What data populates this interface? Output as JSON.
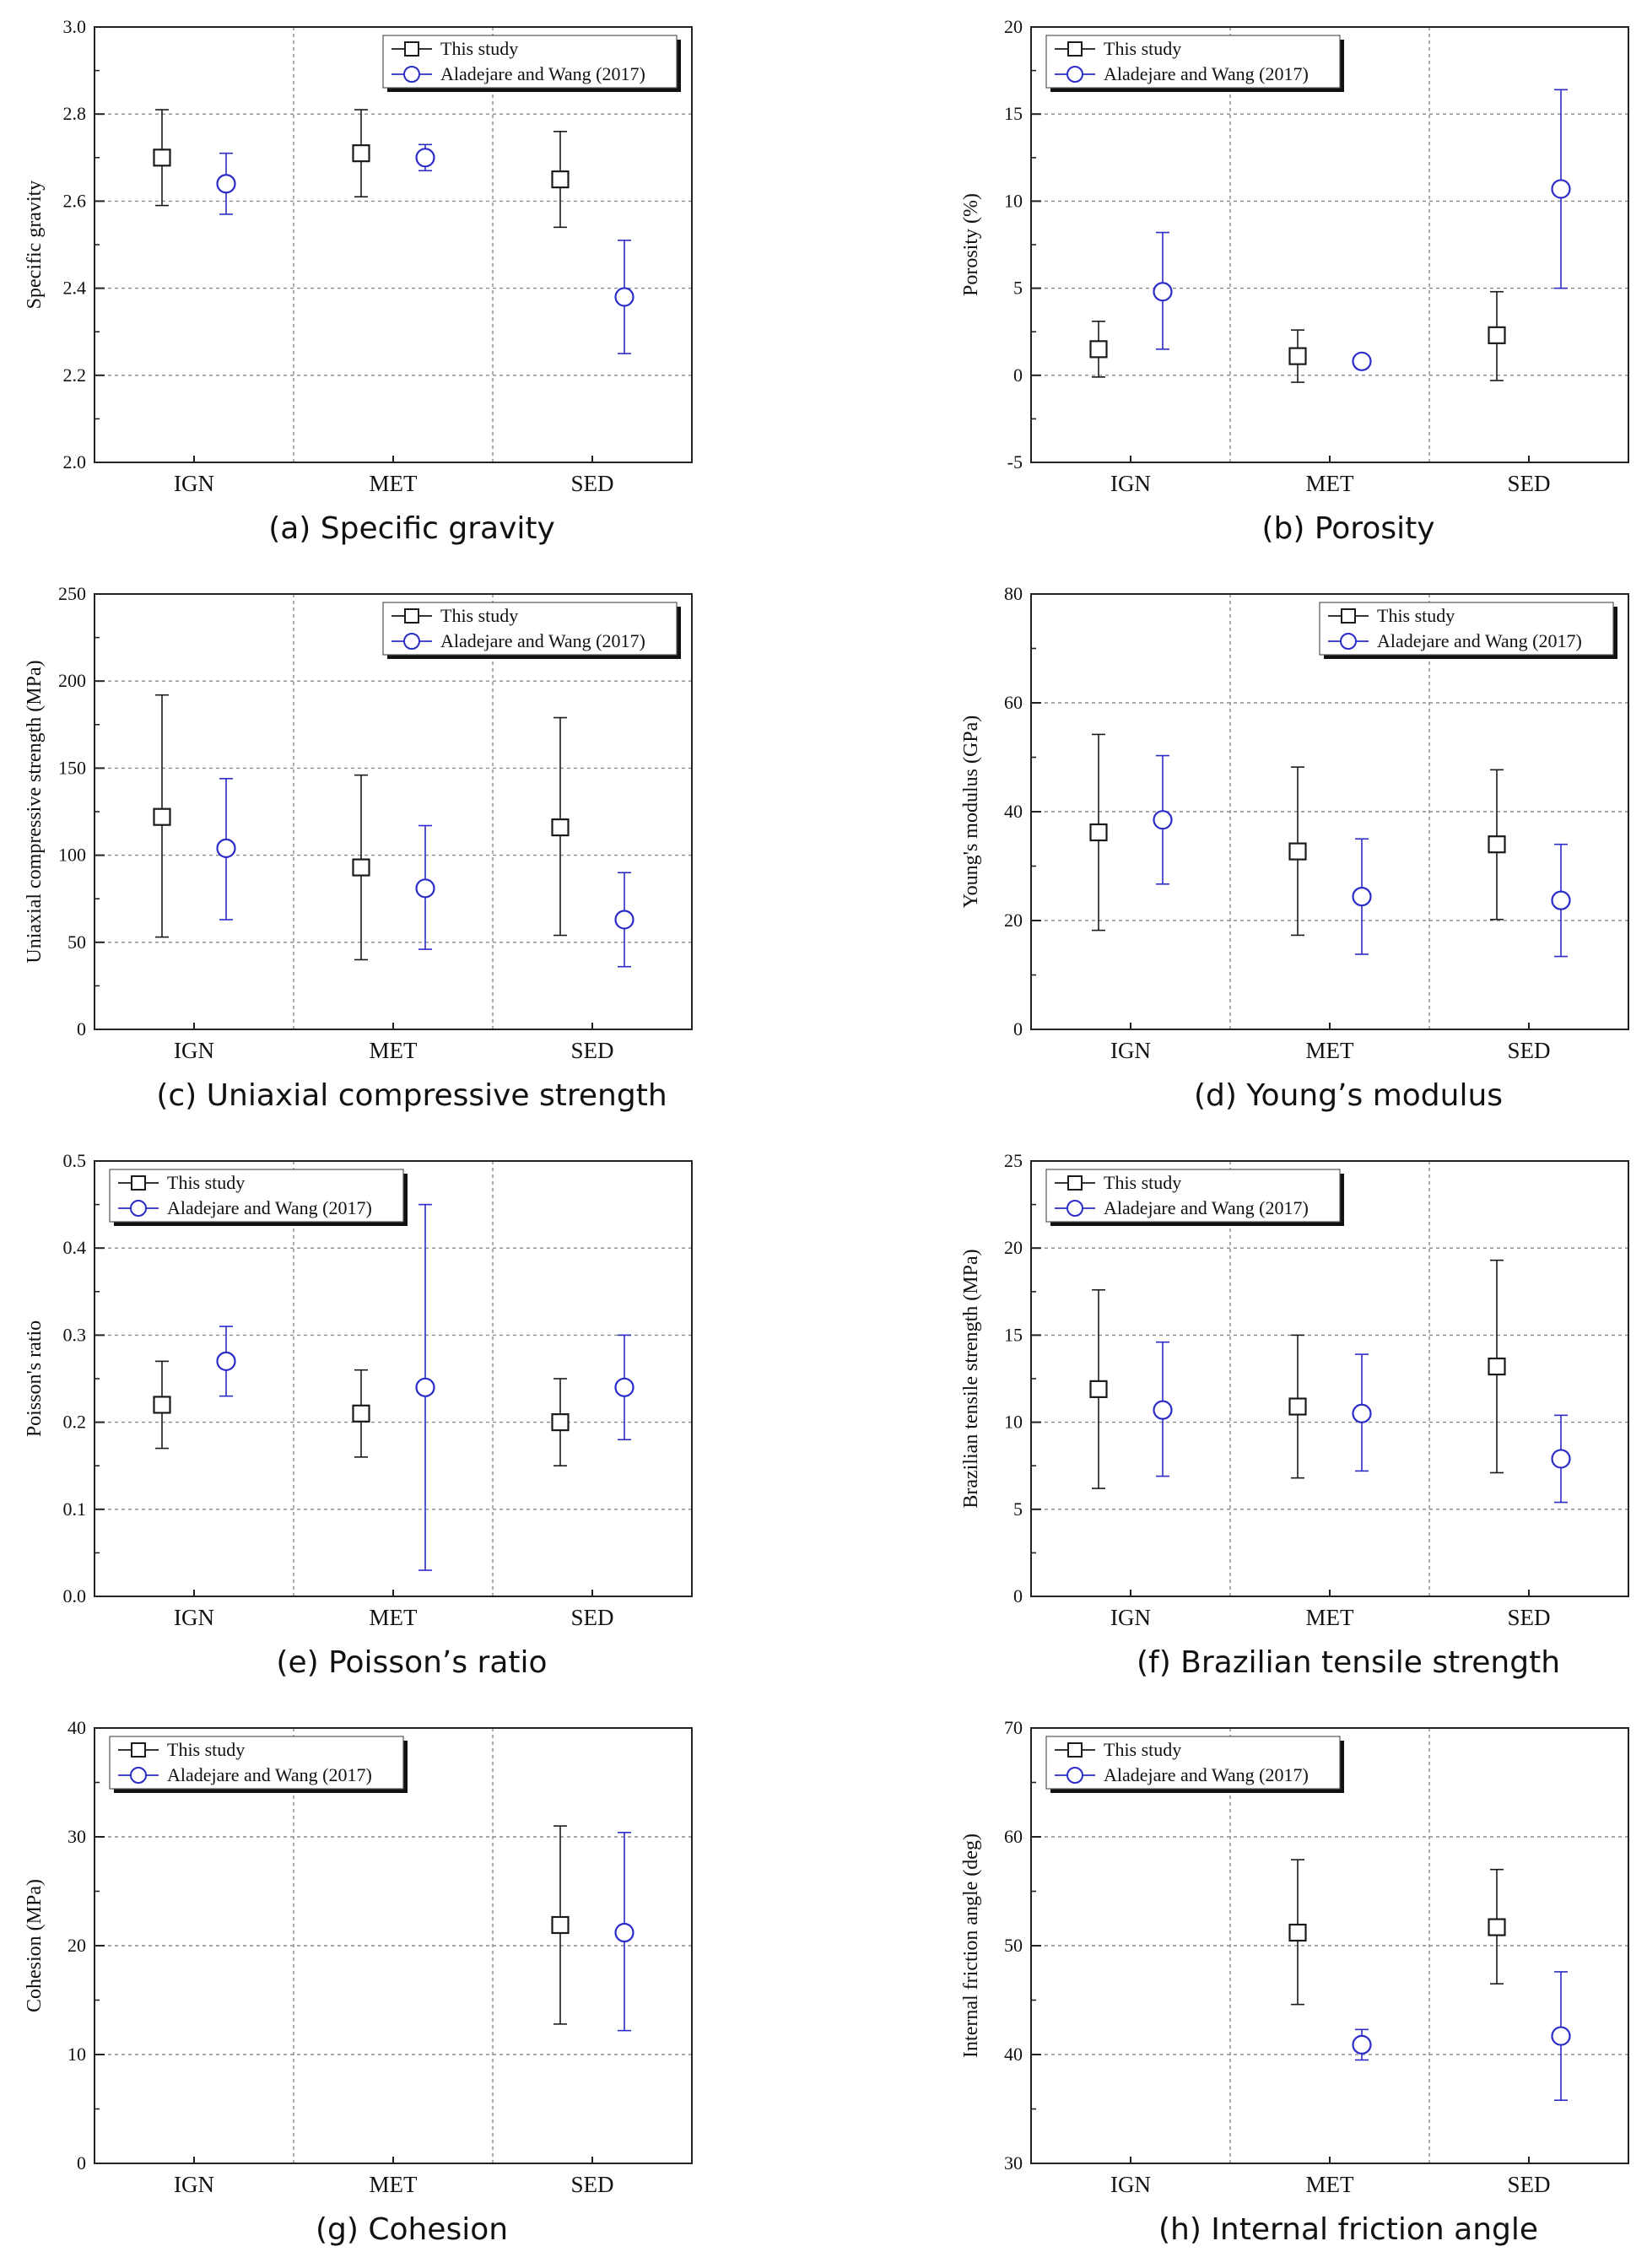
{
  "figure": {
    "series_names": [
      "This study",
      "Aladejare and Wang (2017)"
    ],
    "series_colors": [
      "#1a1a1a",
      "#2b2bc8"
    ]
  },
  "chart_data": [
    {
      "id": "sg",
      "type": "scatter",
      "caption": "(a) Specific gravity",
      "ylabel": "Specific gravity",
      "categories": [
        "IGN",
        "MET",
        "SED"
      ],
      "ylim": [
        2.0,
        3.0
      ],
      "yticks": [
        2.0,
        2.2,
        2.4,
        2.6,
        2.8,
        3.0
      ],
      "ytick_labels": [
        "2.0",
        "2.2",
        "2.4",
        "2.6",
        "2.8",
        "3.0"
      ],
      "legend_position": "top-right",
      "series": [
        {
          "name": "This study",
          "marker": "square",
          "color": "#1a1a1a",
          "values": [
            2.7,
            2.71,
            2.65
          ],
          "lower": [
            2.59,
            2.61,
            2.54
          ],
          "upper": [
            2.81,
            2.81,
            2.76
          ]
        },
        {
          "name": "Aladejare and Wang (2017)",
          "marker": "circle",
          "color": "#2b2bc8",
          "values": [
            2.64,
            2.7,
            2.38
          ],
          "lower": [
            2.57,
            2.67,
            2.25
          ],
          "upper": [
            2.71,
            2.73,
            2.51
          ]
        }
      ]
    },
    {
      "id": "porosity",
      "type": "scatter",
      "caption": "(b) Porosity",
      "ylabel": "Porosity (%)",
      "categories": [
        "IGN",
        "MET",
        "SED"
      ],
      "ylim": [
        -5,
        20
      ],
      "yticks": [
        -5,
        0,
        5,
        10,
        15,
        20
      ],
      "ytick_labels": [
        "-5",
        "0",
        "5",
        "10",
        "15",
        "20"
      ],
      "legend_position": "top-left",
      "series": [
        {
          "name": "This study",
          "marker": "square",
          "color": "#1a1a1a",
          "values": [
            1.5,
            1.1,
            2.3
          ],
          "lower": [
            -0.1,
            -0.4,
            -0.3
          ],
          "upper": [
            3.1,
            2.6,
            4.8
          ]
        },
        {
          "name": "Aladejare and Wang (2017)",
          "marker": "circle",
          "color": "#2b2bc8",
          "values": [
            4.8,
            0.8,
            10.7
          ],
          "lower": [
            1.5,
            0.6,
            5.0
          ],
          "upper": [
            8.2,
            1.0,
            16.4
          ]
        }
      ]
    },
    {
      "id": "ucs",
      "type": "scatter",
      "caption": "(c) Uniaxial compressive strength",
      "ylabel": "Uniaxial compressive strength (MPa)",
      "categories": [
        "IGN",
        "MET",
        "SED"
      ],
      "ylim": [
        0,
        250
      ],
      "yticks": [
        0,
        50,
        100,
        150,
        200,
        250
      ],
      "ytick_labels": [
        "0",
        "50",
        "100",
        "150",
        "200",
        "250"
      ],
      "legend_position": "top-right",
      "series": [
        {
          "name": "This study",
          "marker": "square",
          "color": "#1a1a1a",
          "values": [
            122,
            93,
            116
          ],
          "lower": [
            53,
            40,
            54
          ],
          "upper": [
            192,
            146,
            179
          ]
        },
        {
          "name": "Aladejare and Wang (2017)",
          "marker": "circle",
          "color": "#2b2bc8",
          "values": [
            104,
            81,
            63
          ],
          "lower": [
            63,
            46,
            36
          ],
          "upper": [
            144,
            117,
            90
          ]
        }
      ]
    },
    {
      "id": "young",
      "type": "scatter",
      "caption": "(d) Young’s modulus",
      "ylabel": "Young's modulus (GPa)",
      "categories": [
        "IGN",
        "MET",
        "SED"
      ],
      "ylim": [
        0,
        80
      ],
      "yticks": [
        0,
        20,
        40,
        60,
        80
      ],
      "ytick_labels": [
        "0",
        "20",
        "40",
        "60",
        "80"
      ],
      "legend_position": "top-right",
      "series": [
        {
          "name": "This study",
          "marker": "square",
          "color": "#1a1a1a",
          "values": [
            36.2,
            32.7,
            34.0
          ],
          "lower": [
            18.2,
            17.3,
            20.2
          ],
          "upper": [
            54.2,
            48.2,
            47.7
          ]
        },
        {
          "name": "Aladejare and Wang (2017)",
          "marker": "circle",
          "color": "#2b2bc8",
          "values": [
            38.5,
            24.4,
            23.7
          ],
          "lower": [
            26.7,
            13.8,
            13.4
          ],
          "upper": [
            50.3,
            35.0,
            34.0
          ]
        }
      ]
    },
    {
      "id": "poisson",
      "type": "scatter",
      "caption": "(e) Poisson’s ratio",
      "ylabel": "Poisson's ratio",
      "categories": [
        "IGN",
        "MET",
        "SED"
      ],
      "ylim": [
        0.0,
        0.5
      ],
      "yticks": [
        0.0,
        0.1,
        0.2,
        0.3,
        0.4,
        0.5
      ],
      "ytick_labels": [
        "0.0",
        "0.1",
        "0.2",
        "0.3",
        "0.4",
        "0.5"
      ],
      "legend_position": "top-left",
      "series": [
        {
          "name": "This study",
          "marker": "square",
          "color": "#1a1a1a",
          "values": [
            0.22,
            0.21,
            0.2
          ],
          "lower": [
            0.17,
            0.16,
            0.15
          ],
          "upper": [
            0.27,
            0.26,
            0.25
          ]
        },
        {
          "name": "Aladejare and Wang (2017)",
          "marker": "circle",
          "color": "#2b2bc8",
          "values": [
            0.27,
            0.24,
            0.24
          ],
          "lower": [
            0.23,
            0.03,
            0.18
          ],
          "upper": [
            0.31,
            0.45,
            0.3
          ]
        }
      ]
    },
    {
      "id": "bts",
      "type": "scatter",
      "caption": "(f) Brazilian tensile strength",
      "ylabel": "Brazilian tensile strength (MPa)",
      "categories": [
        "IGN",
        "MET",
        "SED"
      ],
      "ylim": [
        0,
        25
      ],
      "yticks": [
        0,
        5,
        10,
        15,
        20,
        25
      ],
      "ytick_labels": [
        "0",
        "5",
        "10",
        "15",
        "20",
        "25"
      ],
      "legend_position": "top-left",
      "series": [
        {
          "name": "This study",
          "marker": "square",
          "color": "#1a1a1a",
          "values": [
            11.9,
            10.9,
            13.2
          ],
          "lower": [
            6.2,
            6.8,
            7.1
          ],
          "upper": [
            17.6,
            15.0,
            19.3
          ]
        },
        {
          "name": "Aladejare and Wang (2017)",
          "marker": "circle",
          "color": "#2b2bc8",
          "values": [
            10.7,
            10.5,
            7.9
          ],
          "lower": [
            6.9,
            7.2,
            5.4
          ],
          "upper": [
            14.6,
            13.9,
            10.4
          ]
        }
      ]
    },
    {
      "id": "cohesion",
      "type": "scatter",
      "caption": "(g) Cohesion",
      "ylabel": "Cohesion (MPa)",
      "categories": [
        "IGN",
        "MET",
        "SED"
      ],
      "ylim": [
        0,
        40
      ],
      "yticks": [
        0,
        10,
        20,
        30,
        40
      ],
      "ytick_labels": [
        "0",
        "10",
        "20",
        "30",
        "40"
      ],
      "legend_position": "top-left",
      "series": [
        {
          "name": "This study",
          "marker": "square",
          "color": "#1a1a1a",
          "values": [
            null,
            null,
            21.9
          ],
          "lower": [
            null,
            null,
            12.8
          ],
          "upper": [
            null,
            null,
            31.0
          ]
        },
        {
          "name": "Aladejare and Wang (2017)",
          "marker": "circle",
          "color": "#2b2bc8",
          "values": [
            null,
            null,
            21.2
          ],
          "lower": [
            null,
            null,
            12.2
          ],
          "upper": [
            null,
            null,
            30.4
          ]
        }
      ]
    },
    {
      "id": "friction",
      "type": "scatter",
      "caption": "(h) Internal friction angle",
      "ylabel": "Internal friction angle (deg)",
      "categories": [
        "IGN",
        "MET",
        "SED"
      ],
      "ylim": [
        30,
        70
      ],
      "yticks": [
        30,
        40,
        50,
        60,
        70
      ],
      "ytick_labels": [
        "30",
        "40",
        "50",
        "60",
        "70"
      ],
      "legend_position": "top-left",
      "series": [
        {
          "name": "This study",
          "marker": "square",
          "color": "#1a1a1a",
          "values": [
            null,
            51.2,
            51.7
          ],
          "lower": [
            null,
            44.6,
            46.5
          ],
          "upper": [
            null,
            57.9,
            57.0
          ]
        },
        {
          "name": "Aladejare and Wang (2017)",
          "marker": "circle",
          "color": "#2b2bc8",
          "values": [
            null,
            40.9,
            41.7
          ],
          "lower": [
            null,
            39.5,
            35.8
          ],
          "upper": [
            null,
            42.3,
            47.6
          ]
        }
      ]
    }
  ]
}
